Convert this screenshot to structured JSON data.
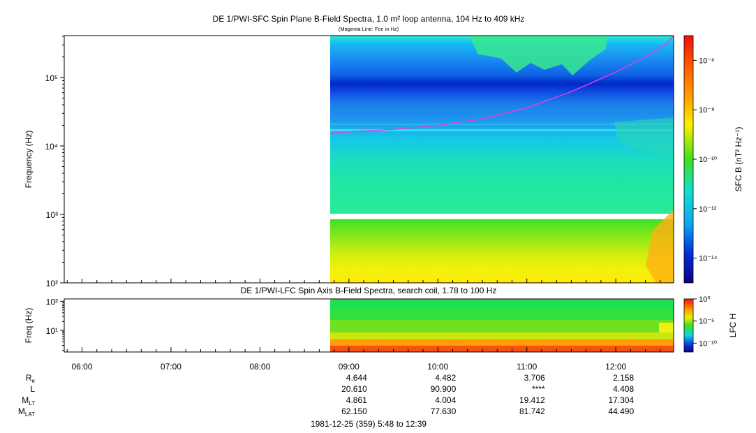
{
  "chart_data": [
    {
      "type": "heatmap",
      "title": "DE 1/PWI-SFC  Spin Plane B-Field Spectra, 1.0 m² loop antenna, 104 Hz to 409 kHz",
      "subtitle": "(Magenta Line: Fce in Hz)",
      "ylabel": "Frequency (Hz)",
      "y_scale": "log",
      "ylim": [
        100,
        409000
      ],
      "y_ticks": [
        {
          "value": 100,
          "label": "10²"
        },
        {
          "value": 1000,
          "label": "10³"
        },
        {
          "value": 10000,
          "label": "10⁴"
        },
        {
          "value": 100000,
          "label": "10⁵"
        }
      ],
      "xlim": [
        "05:48",
        "12:39"
      ],
      "data_start": "08:48",
      "gap_band_hz": [
        850,
        1000
      ],
      "fce_line": {
        "name": "Fce in Hz",
        "color": "#e040e0",
        "points": [
          [
            "08:48",
            15500
          ],
          [
            "09:30",
            17500
          ],
          [
            "10:00",
            20000
          ],
          [
            "10:30",
            25000
          ],
          [
            "11:00",
            36000
          ],
          [
            "11:30",
            62000
          ],
          [
            "12:00",
            120000
          ],
          [
            "12:20",
            200000
          ],
          [
            "12:35",
            320000
          ],
          [
            "12:39",
            409000
          ]
        ]
      },
      "colorbar": {
        "label": "SFC B (nT² Hz⁻¹)",
        "scale": "log",
        "range": [
          1e-15,
          1e-05
        ],
        "ticks": [
          {
            "value": 1e-06,
            "label": "10⁻⁶"
          },
          {
            "value": 1e-08,
            "label": "10⁻⁸"
          },
          {
            "value": 1e-10,
            "label": "10⁻¹⁰"
          },
          {
            "value": 1e-12,
            "label": "10⁻¹²"
          },
          {
            "value": 1e-14,
            "label": "10⁻¹⁴"
          }
        ]
      }
    },
    {
      "type": "heatmap",
      "title": "DE 1/PWI-LFC  Spin Axis B-Field Spectra, search coil, 1.78 to 100 Hz",
      "ylabel": "Freq (Hz)",
      "y_scale": "log",
      "ylim": [
        1.78,
        120
      ],
      "y_ticks": [
        {
          "value": 10,
          "label": "10¹"
        },
        {
          "value": 100,
          "label": "10²"
        }
      ],
      "xlim": [
        "05:48",
        "12:39"
      ],
      "data_start": "08:48",
      "x_ticks": [
        "06:00",
        "07:00",
        "08:00",
        "09:00",
        "10:00",
        "11:00",
        "12:00"
      ],
      "colorbar": {
        "label": "LFC H",
        "scale": "log",
        "range": [
          1e-12,
          1
        ],
        "ticks": [
          {
            "value": 1,
            "label": "10⁰"
          },
          {
            "value": 1e-05,
            "label": "10⁻⁵"
          },
          {
            "value": 1e-10,
            "label": "10⁻¹⁰"
          }
        ]
      }
    }
  ],
  "ephemeris": {
    "row_labels": [
      {
        "main": "R",
        "sub": "e"
      },
      {
        "main": "L",
        "sub": ""
      },
      {
        "main": "M",
        "sub": "LT"
      },
      {
        "main": "M",
        "sub": "LAT"
      }
    ],
    "columns": [
      {
        "time": "09:00",
        "values": [
          "4.644",
          "20.610",
          "4.861",
          "62.150"
        ]
      },
      {
        "time": "10:00",
        "values": [
          "4.482",
          "90.900",
          "4.004",
          "77.630"
        ]
      },
      {
        "time": "11:00",
        "values": [
          "3.706",
          "****",
          "19.412",
          "81.742"
        ]
      },
      {
        "time": "12:00",
        "values": [
          "2.158",
          "4.408",
          "17.304",
          "44.490"
        ]
      }
    ]
  },
  "footer": "1981-12-25 (359) 5:48 to 12:39"
}
